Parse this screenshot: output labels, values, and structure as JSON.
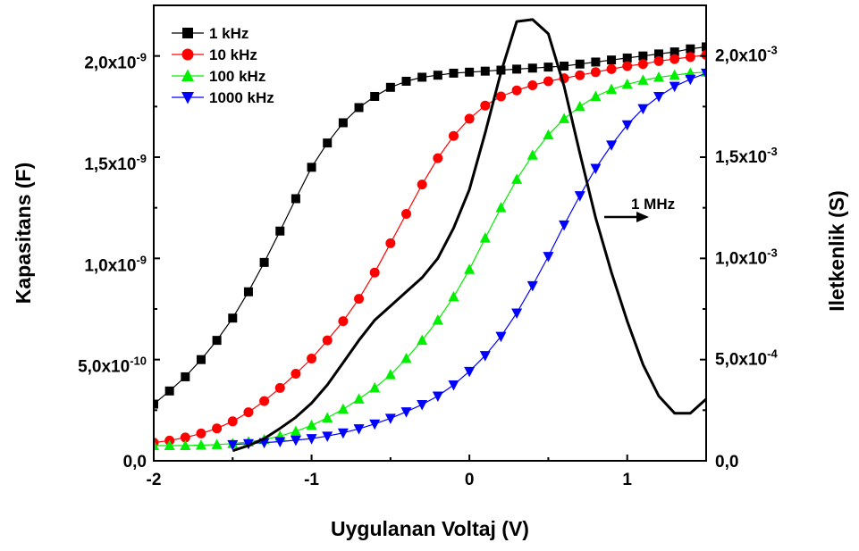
{
  "chart_data": {
    "type": "line",
    "xlabel": "Uygulanan Voltaj (V)",
    "ylabel": "Kapasitans (F)",
    "y2label": "Iletkenlik (S)",
    "xlim": [
      -2.0,
      1.5
    ],
    "ylim": [
      0,
      2.25e-09
    ],
    "y2lim": [
      0,
      0.00225
    ],
    "x_ticks": [
      {
        "value": -2,
        "label": "-2"
      },
      {
        "value": -1,
        "label": "-1"
      },
      {
        "value": 0,
        "label": "0"
      },
      {
        "value": 1,
        "label": "1"
      }
    ],
    "y_ticks": [
      {
        "value": 0,
        "mant": "0,0",
        "exp": ""
      },
      {
        "value": 5e-10,
        "mant": "5,0x10",
        "exp": "-10"
      },
      {
        "value": 1e-09,
        "mant": "1,0x10",
        "exp": "-9"
      },
      {
        "value": 1.5e-09,
        "mant": "1,5x10",
        "exp": "-9"
      },
      {
        "value": 2e-09,
        "mant": "2,0x10",
        "exp": "-9"
      }
    ],
    "y2_ticks": [
      {
        "value": 0,
        "mant": "0,0",
        "exp": ""
      },
      {
        "value": 0.0005,
        "mant": "5,0x10",
        "exp": "-4"
      },
      {
        "value": 0.001,
        "mant": "1,0x10",
        "exp": "-3"
      },
      {
        "value": 0.0015,
        "mant": "1,5x10",
        "exp": "-3"
      },
      {
        "value": 0.002,
        "mant": "2,0x10",
        "exp": "-3"
      }
    ],
    "legend_position": "top-left",
    "series": [
      {
        "name": "1 kHz",
        "axis": "left",
        "color": "#000000",
        "marker": "square",
        "x": [
          -2.0,
          -1.9,
          -1.8,
          -1.7,
          -1.6,
          -1.5,
          -1.4,
          -1.3,
          -1.2,
          -1.1,
          -1.0,
          -0.9,
          -0.8,
          -0.7,
          -0.6,
          -0.5,
          -0.4,
          -0.3,
          -0.2,
          -0.1,
          0.0,
          0.1,
          0.2,
          0.3,
          0.4,
          0.5,
          0.6,
          0.7,
          0.8,
          0.9,
          1.0,
          1.1,
          1.2,
          1.3,
          1.4,
          1.5
        ],
        "y": [
          2.8e-10,
          3.45e-10,
          4.15e-10,
          5e-10,
          5.95e-10,
          7.05e-10,
          8.35e-10,
          9.8e-10,
          1.135e-09,
          1.295e-09,
          1.45e-09,
          1.57e-09,
          1.67e-09,
          1.745e-09,
          1.8e-09,
          1.845e-09,
          1.875e-09,
          1.895e-09,
          1.905e-09,
          1.915e-09,
          1.92e-09,
          1.925e-09,
          1.93e-09,
          1.935e-09,
          1.94e-09,
          1.945e-09,
          1.95e-09,
          1.96e-09,
          1.97e-09,
          1.98e-09,
          1.99e-09,
          2e-09,
          2.01e-09,
          2.02e-09,
          2.035e-09,
          2.045e-09
        ]
      },
      {
        "name": "10 kHz",
        "axis": "left",
        "color": "#ff0000",
        "marker": "circle",
        "x": [
          -2.0,
          -1.9,
          -1.8,
          -1.7,
          -1.6,
          -1.5,
          -1.4,
          -1.3,
          -1.2,
          -1.1,
          -1.0,
          -0.9,
          -0.8,
          -0.7,
          -0.6,
          -0.5,
          -0.4,
          -0.3,
          -0.2,
          -0.1,
          0.0,
          0.1,
          0.2,
          0.3,
          0.4,
          0.5,
          0.6,
          0.7,
          0.8,
          0.9,
          1.0,
          1.1,
          1.2,
          1.3,
          1.4,
          1.5
        ],
        "y": [
          9e-11,
          1e-10,
          1.15e-10,
          1.35e-10,
          1.6e-10,
          1.95e-10,
          2.4e-10,
          2.95e-10,
          3.6e-10,
          4.3e-10,
          5.05e-10,
          5.95e-10,
          6.9e-10,
          8e-10,
          9.3e-10,
          1.075e-09,
          1.22e-09,
          1.365e-09,
          1.495e-09,
          1.605e-09,
          1.69e-09,
          1.755e-09,
          1.8e-09,
          1.83e-09,
          1.855e-09,
          1.875e-09,
          1.89e-09,
          1.905e-09,
          1.92e-09,
          1.935e-09,
          1.95e-09,
          1.96e-09,
          1.975e-09,
          1.985e-09,
          1.995e-09,
          2.005e-09
        ]
      },
      {
        "name": "100 kHz",
        "axis": "left",
        "color": "#00ee00",
        "marker": "triangle-up",
        "x": [
          -2.0,
          -1.9,
          -1.8,
          -1.7,
          -1.6,
          -1.5,
          -1.4,
          -1.3,
          -1.2,
          -1.1,
          -1.0,
          -0.9,
          -0.8,
          -0.7,
          -0.6,
          -0.5,
          -0.4,
          -0.3,
          -0.2,
          -0.1,
          0.0,
          0.1,
          0.2,
          0.3,
          0.4,
          0.5,
          0.6,
          0.7,
          0.8,
          0.9,
          1.0,
          1.1,
          1.2,
          1.3,
          1.4,
          1.5
        ],
        "y": [
          7.5e-11,
          7.5e-11,
          7.5e-11,
          7.7e-11,
          8e-11,
          8.5e-11,
          9.3e-11,
          1.05e-10,
          1.22e-10,
          1.45e-10,
          1.75e-10,
          2.12e-10,
          2.55e-10,
          3.05e-10,
          3.6e-10,
          4.25e-10,
          5.05e-10,
          5.95e-10,
          6.95e-10,
          8.1e-10,
          9.45e-10,
          1.1e-09,
          1.25e-09,
          1.39e-09,
          1.51e-09,
          1.61e-09,
          1.69e-09,
          1.75e-09,
          1.8e-09,
          1.835e-09,
          1.86e-09,
          1.88e-09,
          1.895e-09,
          1.905e-09,
          1.915e-09,
          1.92e-09
        ]
      },
      {
        "name": "1000 kHz",
        "axis": "left",
        "color": "#0000ff",
        "marker": "triangle-down",
        "x": [
          -1.5,
          -1.4,
          -1.3,
          -1.2,
          -1.1,
          -1.0,
          -0.9,
          -0.8,
          -0.7,
          -0.6,
          -0.5,
          -0.4,
          -0.3,
          -0.2,
          -0.1,
          0.0,
          0.1,
          0.2,
          0.3,
          0.4,
          0.5,
          0.6,
          0.7,
          0.8,
          0.9,
          1.0,
          1.1,
          1.2,
          1.3,
          1.4,
          1.5
        ],
        "y": [
          8e-11,
          8.5e-11,
          9e-11,
          9.5e-11,
          1.02e-10,
          1.1e-10,
          1.22e-10,
          1.38e-10,
          1.58e-10,
          1.82e-10,
          2.1e-10,
          2.42e-10,
          2.78e-10,
          3.2e-10,
          3.75e-10,
          4.42e-10,
          5.2e-10,
          6.15e-10,
          7.3e-10,
          8.65e-10,
          1.01e-09,
          1.165e-09,
          1.31e-09,
          1.445e-09,
          1.56e-09,
          1.66e-09,
          1.74e-09,
          1.8e-09,
          1.85e-09,
          1.885e-09,
          1.915e-09
        ]
      },
      {
        "name": "1 MHz",
        "axis": "right",
        "color": "#000000",
        "marker": "none",
        "x": [
          -1.5,
          -1.4,
          -1.3,
          -1.2,
          -1.1,
          -1.0,
          -0.9,
          -0.8,
          -0.7,
          -0.6,
          -0.5,
          -0.4,
          -0.3,
          -0.2,
          -0.1,
          0.0,
          0.1,
          0.2,
          0.3,
          0.4,
          0.5,
          0.6,
          0.7,
          0.8,
          0.9,
          1.0,
          1.1,
          1.2,
          1.3,
          1.4,
          1.5
        ],
        "y": [
          5e-05,
          7.5e-05,
          0.00011,
          0.00016,
          0.000215,
          0.000285,
          0.000375,
          0.000485,
          0.000595,
          0.000695,
          0.000765,
          0.000835,
          0.000905,
          0.001,
          0.00115,
          0.00134,
          0.00162,
          0.00192,
          0.00217,
          0.00218,
          0.00211,
          0.00185,
          0.00152,
          0.0012,
          0.00093,
          0.00069,
          0.000475,
          0.00032,
          0.000235,
          0.000235,
          0.000305
        ]
      }
    ],
    "annotation": {
      "text": "1 MHz",
      "arrow": "right"
    }
  }
}
